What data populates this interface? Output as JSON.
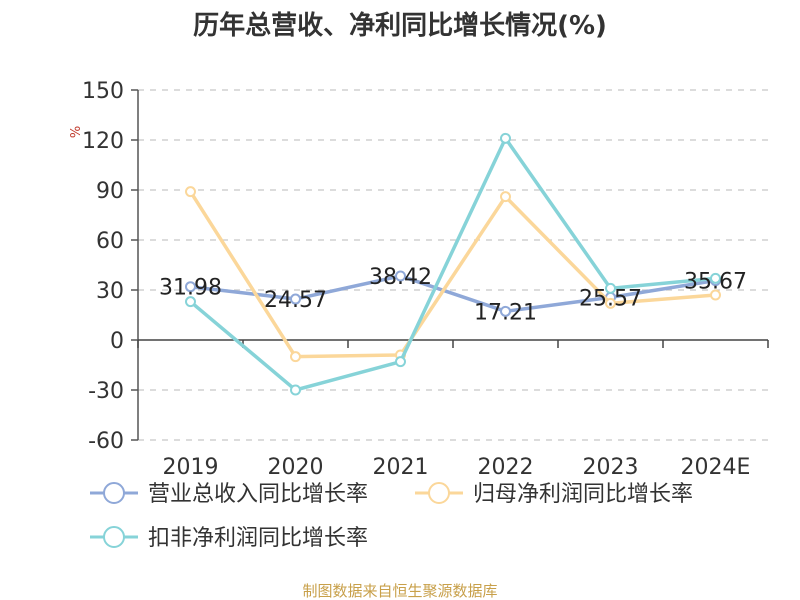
{
  "chart_data": {
    "type": "line",
    "title": "历年总营收、净利同比增长情况(%)",
    "ylabel": "%",
    "categories": [
      "2019",
      "2020",
      "2021",
      "2022",
      "2023",
      "2024E"
    ],
    "ylim": [
      -60,
      150
    ],
    "yticks": [
      150,
      120,
      90,
      60,
      30,
      0,
      -30,
      -60
    ],
    "grid": true,
    "legend_position": "bottom",
    "series": [
      {
        "name": "营业总收入同比增长率",
        "color": "#8fa8d8",
        "values": [
          31.98,
          24.57,
          38.42,
          17.21,
          25.57,
          35.67
        ],
        "labels": [
          "31.98",
          "24.57",
          "38.42",
          "17.21",
          "25.57",
          "35.67"
        ]
      },
      {
        "name": "归母净利润同比增长率",
        "color": "#fbd79a",
        "values": [
          89,
          -10,
          -9,
          86,
          22,
          27
        ]
      },
      {
        "name": "扣非净利润同比增长率",
        "color": "#86d3d8",
        "values": [
          23,
          -30,
          -13,
          121,
          31,
          37
        ]
      }
    ]
  },
  "source": "制图数据来自恒生聚源数据库"
}
